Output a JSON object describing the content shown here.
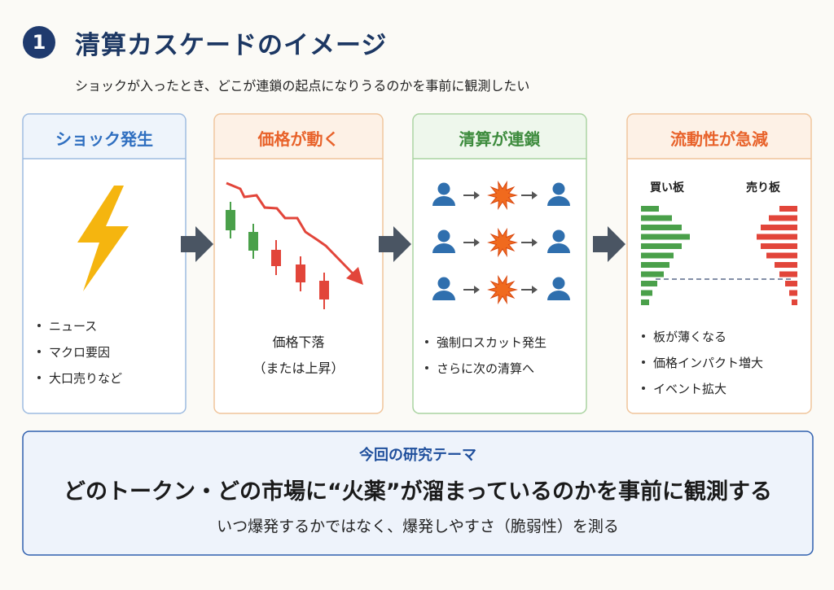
{
  "header": {
    "number": "1",
    "title": "清算カスケードのイメージ",
    "subtitle": "ショックが入ったとき、どこが連鎖の起点になりうるのかを事前に観測したい"
  },
  "panels": [
    {
      "title": "ショック発生",
      "bullets": [
        "ニュース",
        "マクロ要因",
        "大口売りなど"
      ]
    },
    {
      "title": "価格が動く",
      "caption": [
        "価格下落",
        "（または上昇）"
      ]
    },
    {
      "title": "清算が連鎖",
      "bullets": [
        "強制ロスカット発生",
        "さらに次の清算へ"
      ]
    },
    {
      "title": "流動性が急減",
      "book_labels": [
        "買い板",
        "売り板"
      ],
      "bullets": [
        "板が薄くなる",
        "価格インパクト増大",
        "イベント拡大"
      ]
    }
  ],
  "footer": {
    "label": "今回の研究テーマ",
    "headline": "どのトークン・どの市場に“火薬”が溜まっているのかを事前に観測する",
    "subline": "いつ爆発するかではなく、爆発しやすさ（脆弱性）を測る"
  }
}
